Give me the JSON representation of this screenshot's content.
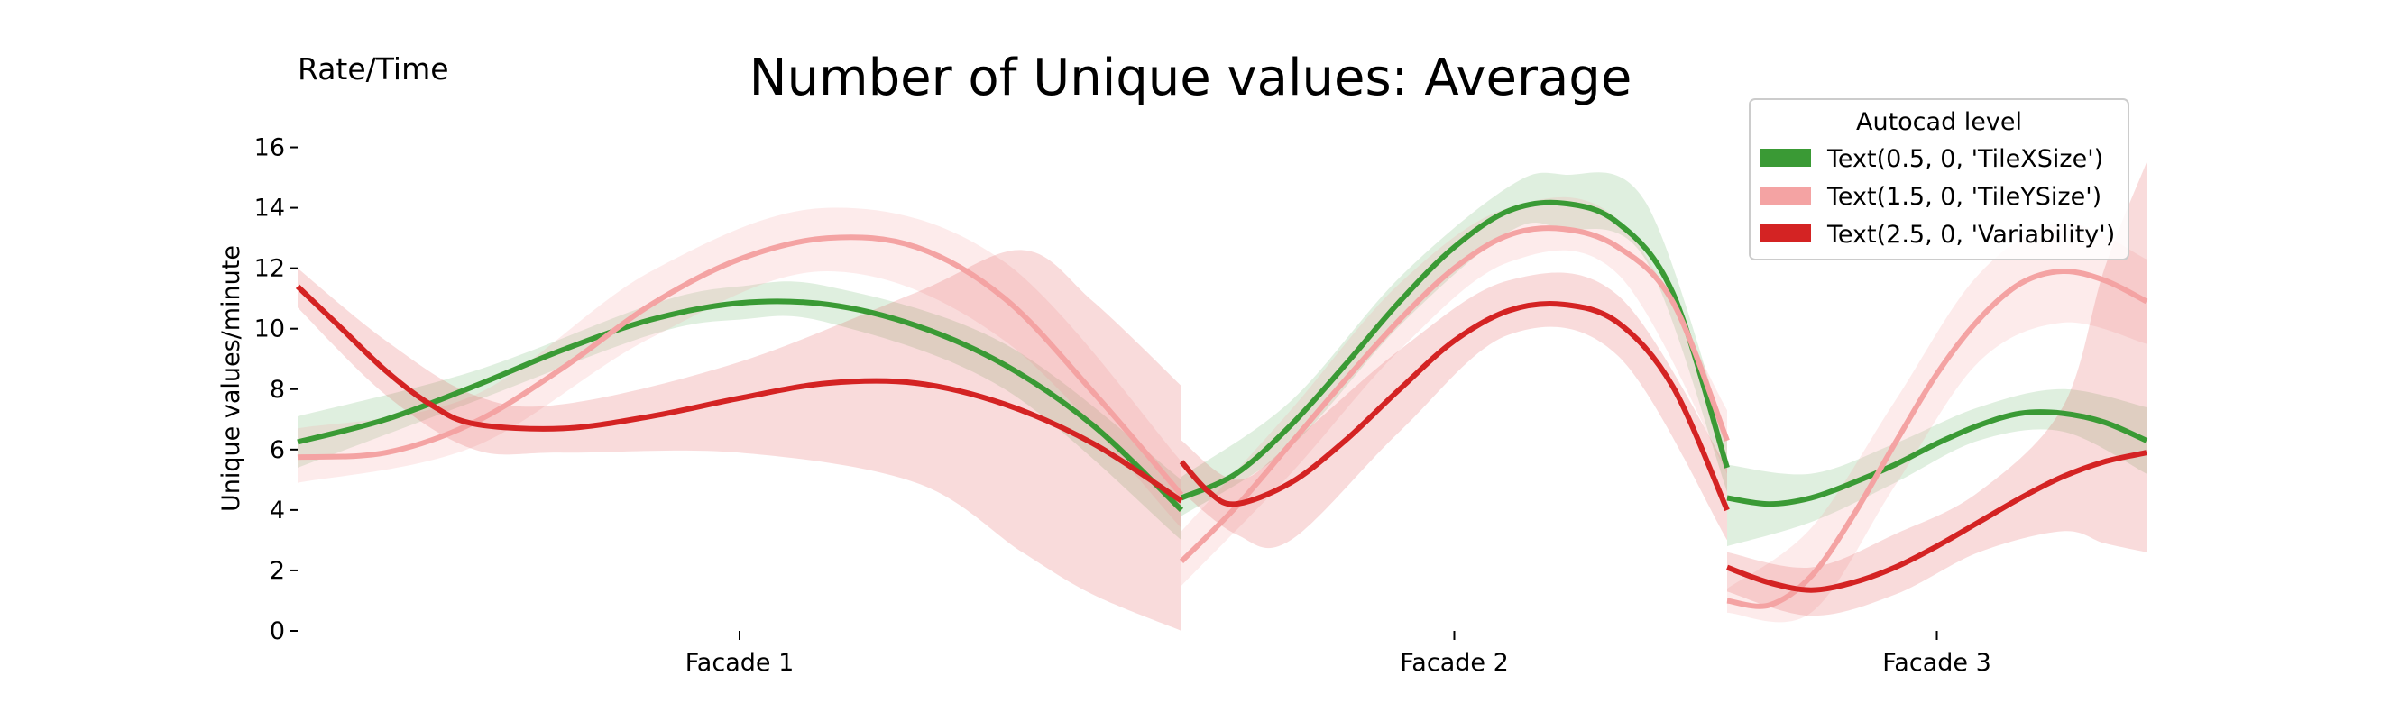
{
  "chart_data": {
    "type": "line",
    "title": "Number of Unique values: Average",
    "corner_label": "Rate/Time",
    "xlabel": "",
    "ylabel": "Unique values/minute",
    "ylim": [
      0,
      17
    ],
    "yticks": [
      0,
      2,
      4,
      6,
      8,
      10,
      12,
      14,
      16
    ],
    "grid": false,
    "legend": {
      "title": "Autocad level",
      "placement": "top-right"
    },
    "categories": [
      "Facade 1",
      "Facade 2",
      "Facade 3"
    ],
    "series": [
      {
        "name": "Text(0.5, 0, 'TileXSize')",
        "color": "#3a9a35",
        "band_color": "#3a9a35",
        "band_opacity": 0.16,
        "segments": [
          {
            "category": "Facade 1",
            "points": [
              [
                0,
                6.25
              ],
              [
                0.1,
                7.0
              ],
              [
                0.2,
                8.1
              ],
              [
                0.3,
                9.3
              ],
              [
                0.4,
                10.3
              ],
              [
                0.5,
                10.85
              ],
              [
                0.6,
                10.8
              ],
              [
                0.7,
                10.1
              ],
              [
                0.8,
                8.8
              ],
              [
                0.9,
                6.8
              ],
              [
                1.0,
                4.0
              ]
            ],
            "band": [
              [
                0,
                5.4,
                7.1
              ],
              [
                0.2,
                7.6,
                8.6
              ],
              [
                0.4,
                9.8,
                10.8
              ],
              [
                0.5,
                10.3,
                11.4
              ],
              [
                0.6,
                10.2,
                11.4
              ],
              [
                0.8,
                8.0,
                9.5
              ],
              [
                1.0,
                3.0,
                5.0
              ]
            ]
          },
          {
            "category": "Facade 2",
            "points": [
              [
                0,
                4.4
              ],
              [
                0.1,
                5.2
              ],
              [
                0.2,
                6.8
              ],
              [
                0.3,
                8.8
              ],
              [
                0.4,
                10.9
              ],
              [
                0.5,
                12.7
              ],
              [
                0.6,
                13.9
              ],
              [
                0.7,
                14.15
              ],
              [
                0.8,
                13.5
              ],
              [
                0.9,
                11.2
              ],
              [
                1.0,
                5.4
              ]
            ],
            "band": [
              [
                0,
                3.8,
                5.1
              ],
              [
                0.2,
                6.1,
                7.6
              ],
              [
                0.4,
                10.1,
                11.7
              ],
              [
                0.6,
                13.2,
                14.7
              ],
              [
                0.7,
                13.3,
                15.1
              ],
              [
                0.85,
                12.3,
                14.2
              ],
              [
                1.0,
                4.6,
                6.3
              ]
            ]
          },
          {
            "category": "Facade 3",
            "points": [
              [
                0,
                4.4
              ],
              [
                0.1,
                4.2
              ],
              [
                0.2,
                4.4
              ],
              [
                0.3,
                4.9
              ],
              [
                0.4,
                5.5
              ],
              [
                0.5,
                6.2
              ],
              [
                0.6,
                6.8
              ],
              [
                0.7,
                7.2
              ],
              [
                0.8,
                7.2
              ],
              [
                0.9,
                6.9
              ],
              [
                1.0,
                6.3
              ]
            ],
            "band": [
              [
                0,
                2.8,
                5.5
              ],
              [
                0.2,
                3.6,
                5.2
              ],
              [
                0.4,
                4.9,
                6.2
              ],
              [
                0.6,
                6.3,
                7.4
              ],
              [
                0.8,
                6.6,
                8.0
              ],
              [
                1.0,
                5.2,
                7.4
              ]
            ]
          }
        ]
      },
      {
        "name": "Text(1.5, 0, 'TileYSize')",
        "color": "#f4a3a3",
        "band_color": "#f4a3a3",
        "band_opacity": 0.22,
        "segments": [
          {
            "category": "Facade 1",
            "points": [
              [
                0,
                5.75
              ],
              [
                0.1,
                5.9
              ],
              [
                0.2,
                6.9
              ],
              [
                0.3,
                8.7
              ],
              [
                0.4,
                10.8
              ],
              [
                0.5,
                12.3
              ],
              [
                0.6,
                13.0
              ],
              [
                0.7,
                12.7
              ],
              [
                0.8,
                11.0
              ],
              [
                0.9,
                7.9
              ],
              [
                1.0,
                4.5
              ]
            ],
            "band": [
              [
                0,
                4.9,
                6.7
              ],
              [
                0.2,
                6.1,
                7.8
              ],
              [
                0.4,
                9.7,
                11.9
              ],
              [
                0.6,
                11.9,
                14.0
              ],
              [
                0.8,
                9.6,
                12.2
              ],
              [
                1.0,
                3.4,
                5.6
              ]
            ]
          },
          {
            "category": "Facade 2",
            "points": [
              [
                0,
                2.3
              ],
              [
                0.1,
                4.1
              ],
              [
                0.2,
                6.2
              ],
              [
                0.3,
                8.3
              ],
              [
                0.4,
                10.3
              ],
              [
                0.5,
                12.0
              ],
              [
                0.6,
                13.1
              ],
              [
                0.7,
                13.3
              ],
              [
                0.8,
                12.7
              ],
              [
                0.9,
                10.9
              ],
              [
                1.0,
                6.3
              ]
            ],
            "band": [
              [
                0,
                1.5,
                3.3
              ],
              [
                0.2,
                5.2,
                7.3
              ],
              [
                0.4,
                9.3,
                11.5
              ],
              [
                0.6,
                12.2,
                14.0
              ],
              [
                0.8,
                11.8,
                13.6
              ],
              [
                1.0,
                5.2,
                7.3
              ]
            ]
          },
          {
            "category": "Facade 3",
            "points": [
              [
                0,
                1.0
              ],
              [
                0.1,
                0.85
              ],
              [
                0.2,
                1.8
              ],
              [
                0.3,
                3.8
              ],
              [
                0.4,
                6.2
              ],
              [
                0.5,
                8.5
              ],
              [
                0.6,
                10.3
              ],
              [
                0.7,
                11.5
              ],
              [
                0.8,
                11.9
              ],
              [
                0.9,
                11.6
              ],
              [
                1.0,
                10.9
              ]
            ],
            "band": [
              [
                0,
                0.6,
                1.4
              ],
              [
                0.2,
                0.6,
                3.4
              ],
              [
                0.4,
                4.8,
                7.6
              ],
              [
                0.6,
                8.9,
                11.8
              ],
              [
                0.8,
                10.2,
                13.5
              ],
              [
                1.0,
                9.5,
                12.3
              ]
            ]
          }
        ]
      },
      {
        "name": "Text(2.5, 0, 'Variability')",
        "color": "#d42323",
        "band_color": "#e24a4a",
        "band_opacity": 0.2,
        "segments": [
          {
            "category": "Facade 1",
            "points": [
              [
                0,
                11.4
              ],
              [
                0.05,
                10.0
              ],
              [
                0.1,
                8.6
              ],
              [
                0.15,
                7.5
              ],
              [
                0.2,
                6.85
              ],
              [
                0.3,
                6.7
              ],
              [
                0.4,
                7.1
              ],
              [
                0.5,
                7.7
              ],
              [
                0.6,
                8.2
              ],
              [
                0.7,
                8.2
              ],
              [
                0.8,
                7.5
              ],
              [
                0.9,
                6.2
              ],
              [
                1.0,
                4.3
              ]
            ],
            "band": [
              [
                0,
                10.7,
                12.0
              ],
              [
                0.1,
                7.8,
                9.6
              ],
              [
                0.2,
                6.0,
                7.8
              ],
              [
                0.3,
                5.9,
                7.5
              ],
              [
                0.5,
                5.9,
                8.9
              ],
              [
                0.7,
                4.9,
                11.2
              ],
              [
                0.82,
                2.6,
                12.6
              ],
              [
                0.9,
                1.2,
                10.9
              ],
              [
                1.0,
                0.0,
                8.1
              ]
            ]
          },
          {
            "category": "Facade 2",
            "points": [
              [
                0,
                5.6
              ],
              [
                0.05,
                4.6
              ],
              [
                0.1,
                4.2
              ],
              [
                0.2,
                4.9
              ],
              [
                0.3,
                6.3
              ],
              [
                0.4,
                8.0
              ],
              [
                0.5,
                9.6
              ],
              [
                0.6,
                10.6
              ],
              [
                0.7,
                10.8
              ],
              [
                0.8,
                10.2
              ],
              [
                0.9,
                8.1
              ],
              [
                1.0,
                4.0
              ]
            ],
            "band": [
              [
                0,
                4.6,
                6.3
              ],
              [
                0.1,
                3.2,
                5.0
              ],
              [
                0.2,
                3.0,
                6.2
              ],
              [
                0.4,
                6.6,
                9.3
              ],
              [
                0.6,
                9.8,
                11.6
              ],
              [
                0.8,
                9.1,
                11.1
              ],
              [
                1.0,
                3.0,
                5.4
              ]
            ]
          },
          {
            "category": "Facade 3",
            "points": [
              [
                0,
                2.1
              ],
              [
                0.1,
                1.6
              ],
              [
                0.2,
                1.35
              ],
              [
                0.3,
                1.6
              ],
              [
                0.4,
                2.1
              ],
              [
                0.5,
                2.8
              ],
              [
                0.6,
                3.6
              ],
              [
                0.7,
                4.4
              ],
              [
                0.8,
                5.1
              ],
              [
                0.9,
                5.6
              ],
              [
                1.0,
                5.9
              ]
            ],
            "band": [
              [
                0,
                1.3,
                2.6
              ],
              [
                0.2,
                0.5,
                2.1
              ],
              [
                0.4,
                1.2,
                3.2
              ],
              [
                0.6,
                2.6,
                4.6
              ],
              [
                0.8,
                3.3,
                7.4
              ],
              [
                0.9,
                2.9,
                12.0
              ],
              [
                1.0,
                2.6,
                15.5
              ]
            ]
          }
        ]
      }
    ]
  }
}
